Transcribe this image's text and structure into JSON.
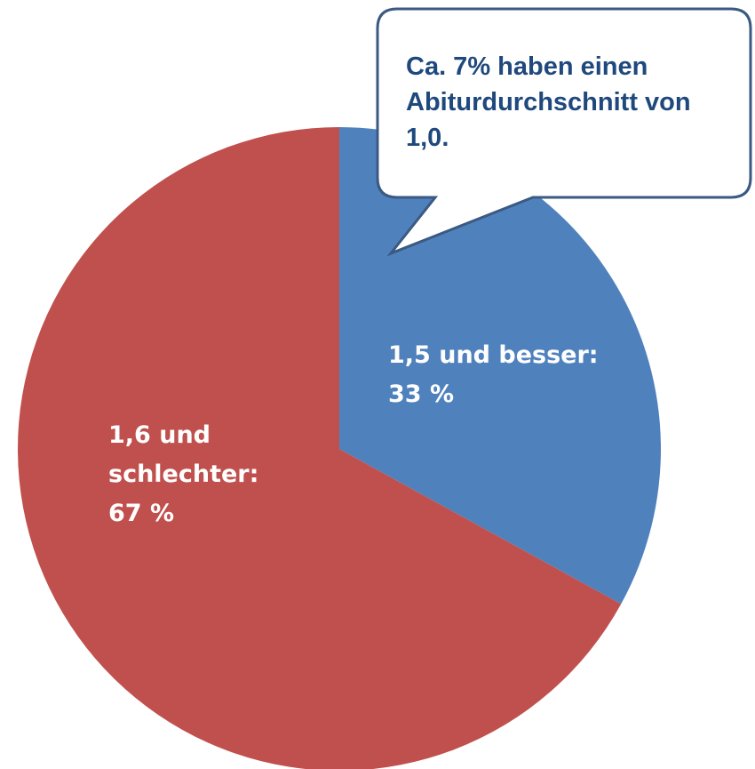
{
  "chart_data": {
    "type": "pie",
    "categories": [
      "1,5 und besser:",
      "1,6 und schlechter:"
    ],
    "values": [
      33,
      67
    ],
    "value_labels": [
      "33 %",
      "67 %"
    ],
    "colors": [
      "#4f81bd",
      "#c0504d"
    ],
    "annotation": "Ca. 7% haben einen Abiturdurchschnitt von 1,0."
  }
}
